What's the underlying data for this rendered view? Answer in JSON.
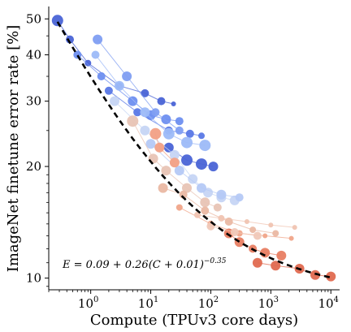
{
  "chart_data": {
    "type": "scatter",
    "title": "",
    "xlabel": "Compute (TPUv3 core days)",
    "ylabel": "ImageNet finetune error rate [%]",
    "xscale": "log",
    "yscale": "log",
    "xlim": [
      0.2,
      14000
    ],
    "ylim": [
      9.3,
      54
    ],
    "x_ticks": [
      {
        "value": 1,
        "label": "10",
        "exp": "0"
      },
      {
        "value": 10,
        "label": "10",
        "exp": "1"
      },
      {
        "value": 100,
        "label": "10",
        "exp": "2"
      },
      {
        "value": 1000,
        "label": "10",
        "exp": "3"
      },
      {
        "value": 10000,
        "label": "10",
        "exp": "4"
      }
    ],
    "y_ticks": [
      {
        "value": 10,
        "label": "10"
      },
      {
        "value": 20,
        "label": "20"
      },
      {
        "value": 30,
        "label": "30"
      },
      {
        "value": 40,
        "label": "40"
      },
      {
        "value": 50,
        "label": "50"
      }
    ],
    "annotation": {
      "base": "E = 0.09 + 0.26(C + 0.01)",
      "exponent": "−0.35",
      "position": "bottom-left"
    },
    "fit": {
      "style": "dashed",
      "color": "#000000",
      "a": 0.09,
      "b": 0.26,
      "c": 0.01,
      "k": -0.35,
      "x_range": [
        0.28,
        11000
      ]
    },
    "series": [
      {
        "color": "#4a64d6",
        "points": [
          {
            "x": 0.28,
            "y": 49.5,
            "s": 7
          },
          {
            "x": 0.45,
            "y": 44,
            "s": 5
          },
          {
            "x": 0.9,
            "y": 38,
            "s": 4
          },
          {
            "x": 3,
            "y": 33,
            "s": 4
          },
          {
            "x": 8,
            "y": 31.5,
            "s": 5
          },
          {
            "x": 15,
            "y": 30,
            "s": 5
          },
          {
            "x": 24,
            "y": 29.5,
            "s": 3
          }
        ]
      },
      {
        "color": "#6e8ff0",
        "points": [
          {
            "x": 0.6,
            "y": 40,
            "s": 5
          },
          {
            "x": 1.5,
            "y": 35,
            "s": 5
          },
          {
            "x": 5,
            "y": 30,
            "s": 6
          },
          {
            "x": 10,
            "y": 27.5,
            "s": 6
          },
          {
            "x": 18,
            "y": 26.8,
            "s": 6
          },
          {
            "x": 30,
            "y": 26.5,
            "s": 5
          }
        ]
      },
      {
        "color": "#5a78e6",
        "points": [
          {
            "x": 2,
            "y": 32,
            "s": 5
          },
          {
            "x": 6,
            "y": 28,
            "s": 5
          },
          {
            "x": 20,
            "y": 25,
            "s": 5
          },
          {
            "x": 45,
            "y": 24.5,
            "s": 5
          },
          {
            "x": 70,
            "y": 24.2,
            "s": 4
          }
        ]
      },
      {
        "color": "#9dbaf8",
        "points": [
          {
            "x": 1.2,
            "y": 40,
            "s": 5
          },
          {
            "x": 3,
            "y": 33,
            "s": 6
          },
          {
            "x": 8,
            "y": 28,
            "s": 6
          },
          {
            "x": 20,
            "y": 24.5,
            "s": 7
          },
          {
            "x": 40,
            "y": 23.2,
            "s": 7
          },
          {
            "x": 80,
            "y": 22.8,
            "s": 7
          }
        ]
      },
      {
        "color": "#4a64d6",
        "points": [
          {
            "x": 20,
            "y": 22.5,
            "s": 6
          },
          {
            "x": 40,
            "y": 20.8,
            "s": 7
          },
          {
            "x": 70,
            "y": 20.3,
            "s": 7
          },
          {
            "x": 110,
            "y": 20,
            "s": 6
          }
        ]
      },
      {
        "color": "#7f9ef2",
        "points": [
          {
            "x": 1.3,
            "y": 44,
            "s": 6
          },
          {
            "x": 4,
            "y": 35,
            "s": 6
          },
          {
            "x": 12,
            "y": 28,
            "s": 5
          },
          {
            "x": 30,
            "y": 25,
            "s": 5
          }
        ]
      },
      {
        "color": "#c6d5f4",
        "points": [
          {
            "x": 2.5,
            "y": 30,
            "s": 6
          },
          {
            "x": 8,
            "y": 25,
            "s": 6
          },
          {
            "x": 25,
            "y": 21.5,
            "s": 6
          },
          {
            "x": 50,
            "y": 18.5,
            "s": 6
          },
          {
            "x": 90,
            "y": 17,
            "s": 6
          },
          {
            "x": 150,
            "y": 16.5,
            "s": 6
          },
          {
            "x": 250,
            "y": 16.2,
            "s": 6
          }
        ]
      },
      {
        "color": "#b5c9f5",
        "points": [
          {
            "x": 10,
            "y": 23,
            "s": 6
          },
          {
            "x": 30,
            "y": 19.5,
            "s": 6
          },
          {
            "x": 70,
            "y": 17.5,
            "s": 6
          },
          {
            "x": 150,
            "y": 16.8,
            "s": 6
          },
          {
            "x": 300,
            "y": 16.5,
            "s": 5
          }
        ]
      },
      {
        "color": "#f2a085",
        "points": [
          {
            "x": 12,
            "y": 24.5,
            "s": 7
          },
          {
            "x": 14,
            "y": 22.5,
            "s": 6
          },
          {
            "x": 25,
            "y": 20.5,
            "s": 6
          }
        ]
      },
      {
        "color": "#e8c4b5",
        "points": [
          {
            "x": 5,
            "y": 26.5,
            "s": 7
          },
          {
            "x": 11,
            "y": 21,
            "s": 6
          },
          {
            "x": 18,
            "y": 19.5,
            "s": 6
          },
          {
            "x": 40,
            "y": 17.5,
            "s": 6
          },
          {
            "x": 80,
            "y": 16,
            "s": 6
          },
          {
            "x": 130,
            "y": 15.5,
            "s": 5
          }
        ]
      },
      {
        "color": "#eab8a3",
        "points": [
          {
            "x": 16,
            "y": 17.5,
            "s": 6
          },
          {
            "x": 35,
            "y": 16.8,
            "s": 5
          },
          {
            "x": 80,
            "y": 15.2,
            "s": 5
          },
          {
            "x": 200,
            "y": 14.2,
            "s": 5
          },
          {
            "x": 500,
            "y": 13.5,
            "s": 4
          },
          {
            "x": 1200,
            "y": 13.2,
            "s": 4
          }
        ]
      },
      {
        "color": "#f0a58a",
        "points": [
          {
            "x": 30,
            "y": 15.5,
            "s": 4
          },
          {
            "x": 100,
            "y": 14,
            "s": 4
          },
          {
            "x": 300,
            "y": 13.2,
            "s": 4
          },
          {
            "x": 800,
            "y": 13,
            "s": 3
          },
          {
            "x": 2200,
            "y": 12.8,
            "s": 3
          }
        ]
      },
      {
        "color": "#f0c4b2",
        "points": [
          {
            "x": 60,
            "y": 14.8,
            "s": 4
          },
          {
            "x": 150,
            "y": 14.5,
            "s": 4
          },
          {
            "x": 400,
            "y": 14.2,
            "s": 3
          },
          {
            "x": 1000,
            "y": 13.9,
            "s": 3
          },
          {
            "x": 2500,
            "y": 13.7,
            "s": 3
          }
        ]
      },
      {
        "color": "#e87e63",
        "points": [
          {
            "x": 200,
            "y": 13.2,
            "s": 6
          },
          {
            "x": 300,
            "y": 12.5,
            "s": 6
          },
          {
            "x": 500,
            "y": 12,
            "s": 5
          },
          {
            "x": 800,
            "y": 11.7,
            "s": 6
          },
          {
            "x": 1500,
            "y": 11.5,
            "s": 6
          }
        ]
      },
      {
        "color": "#f0c8b8",
        "points": [
          {
            "x": 100,
            "y": 13.8,
            "s": 5
          },
          {
            "x": 250,
            "y": 13.3,
            "s": 5
          },
          {
            "x": 600,
            "y": 13,
            "s": 5
          }
        ]
      },
      {
        "color": "#e06a50",
        "points": [
          {
            "x": 600,
            "y": 11,
            "s": 6
          },
          {
            "x": 1200,
            "y": 10.8,
            "s": 6
          },
          {
            "x": 3000,
            "y": 10.6,
            "s": 6
          },
          {
            "x": 5500,
            "y": 10.2,
            "s": 6
          },
          {
            "x": 10000,
            "y": 10.1,
            "s": 6
          }
        ]
      }
    ]
  }
}
